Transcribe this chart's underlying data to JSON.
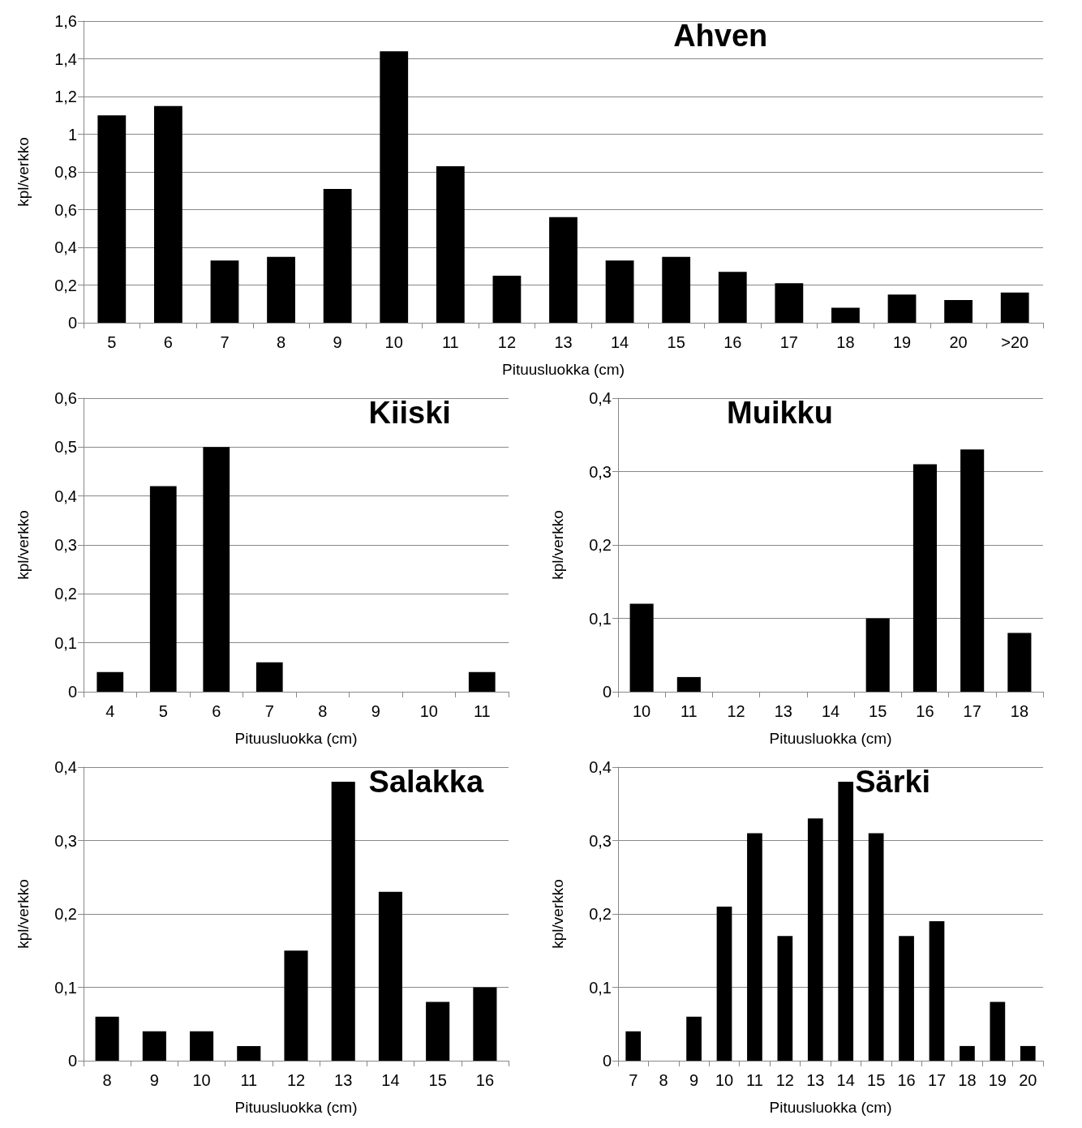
{
  "chart_data": [
    {
      "type": "bar",
      "title": "Ahven",
      "xlabel": "Pituusluokka (cm)",
      "ylabel": "kpl/verkko",
      "categories": [
        "5",
        "6",
        "7",
        "8",
        "9",
        "10",
        "11",
        "12",
        "13",
        "14",
        "15",
        "16",
        "17",
        "18",
        "19",
        "20",
        ">20"
      ],
      "values": [
        1.1,
        1.15,
        0.33,
        0.35,
        0.71,
        1.44,
        0.83,
        0.25,
        0.56,
        0.33,
        0.35,
        0.27,
        0.21,
        0.08,
        0.15,
        0.12,
        0.16
      ],
      "color": "#000000",
      "ylim": [
        0,
        1.6
      ],
      "yticks": [
        {
          "value": 0,
          "label": "0"
        },
        {
          "value": 0.2,
          "label": "0,2"
        },
        {
          "value": 0.4,
          "label": "0,4"
        },
        {
          "value": 0.6,
          "label": "0,6"
        },
        {
          "value": 0.8,
          "label": "0,8"
        },
        {
          "value": 1,
          "label": "1"
        },
        {
          "value": 1.2,
          "label": "1,2"
        },
        {
          "value": 1.4,
          "label": "1,4"
        },
        {
          "value": 1.6,
          "label": "1,6"
        }
      ],
      "grid": "y"
    },
    {
      "type": "bar",
      "title": "Kiiski",
      "xlabel": "Pituusluokka (cm)",
      "ylabel": "kpl/verkko",
      "categories": [
        "4",
        "5",
        "6",
        "7",
        "8",
        "9",
        "10",
        "11"
      ],
      "values": [
        0.04,
        0.42,
        0.5,
        0.06,
        0,
        0,
        0,
        0.04
      ],
      "color": "#000000",
      "ylim": [
        0,
        0.6
      ],
      "yticks": [
        {
          "value": 0,
          "label": "0"
        },
        {
          "value": 0.1,
          "label": "0,1"
        },
        {
          "value": 0.2,
          "label": "0,2"
        },
        {
          "value": 0.3,
          "label": "0,3"
        },
        {
          "value": 0.4,
          "label": "0,4"
        },
        {
          "value": 0.5,
          "label": "0,5"
        },
        {
          "value": 0.6,
          "label": "0,6"
        }
      ],
      "grid": "y"
    },
    {
      "type": "bar",
      "title": "Muikku",
      "xlabel": "Pituusluokka (cm)",
      "ylabel": "kpl/verkko",
      "categories": [
        "10",
        "11",
        "12",
        "13",
        "14",
        "15",
        "16",
        "17",
        "18"
      ],
      "values": [
        0.12,
        0.02,
        0,
        0,
        0,
        0.1,
        0.31,
        0.33,
        0.08
      ],
      "color": "#000000",
      "ylim": [
        0,
        0.4
      ],
      "yticks": [
        {
          "value": 0,
          "label": "0"
        },
        {
          "value": 0.1,
          "label": "0,1"
        },
        {
          "value": 0.2,
          "label": "0,2"
        },
        {
          "value": 0.3,
          "label": "0,3"
        },
        {
          "value": 0.4,
          "label": "0,4"
        }
      ],
      "grid": "y"
    },
    {
      "type": "bar",
      "title": "Salakka",
      "xlabel": "Pituusluokka (cm)",
      "ylabel": "kpl/verkko",
      "categories": [
        "8",
        "9",
        "10",
        "11",
        "12",
        "13",
        "14",
        "15",
        "16"
      ],
      "values": [
        0.06,
        0.04,
        0.04,
        0.02,
        0.15,
        0.38,
        0.23,
        0.08,
        0.1
      ],
      "color": "#000000",
      "ylim": [
        0,
        0.4
      ],
      "yticks": [
        {
          "value": 0,
          "label": "0"
        },
        {
          "value": 0.1,
          "label": "0,1"
        },
        {
          "value": 0.2,
          "label": "0,2"
        },
        {
          "value": 0.3,
          "label": "0,3"
        },
        {
          "value": 0.4,
          "label": "0,4"
        }
      ],
      "grid": "y"
    },
    {
      "type": "bar",
      "title": "Särki",
      "xlabel": "Pituusluokka (cm)",
      "ylabel": "kpl/verkko",
      "categories": [
        "7",
        "8",
        "9",
        "10",
        "11",
        "12",
        "13",
        "14",
        "15",
        "16",
        "17",
        "18",
        "19",
        "20"
      ],
      "values": [
        0.04,
        0,
        0.06,
        0.21,
        0.31,
        0.17,
        0.33,
        0.38,
        0.31,
        0.17,
        0.19,
        0.02,
        0.08,
        0.02
      ],
      "color": "#000000",
      "ylim": [
        0,
        0.4
      ],
      "yticks": [
        {
          "value": 0,
          "label": "0"
        },
        {
          "value": 0.1,
          "label": "0,1"
        },
        {
          "value": 0.2,
          "label": "0,2"
        },
        {
          "value": 0.3,
          "label": "0,3"
        },
        {
          "value": 0.4,
          "label": "0,4"
        }
      ],
      "grid": "y"
    }
  ]
}
